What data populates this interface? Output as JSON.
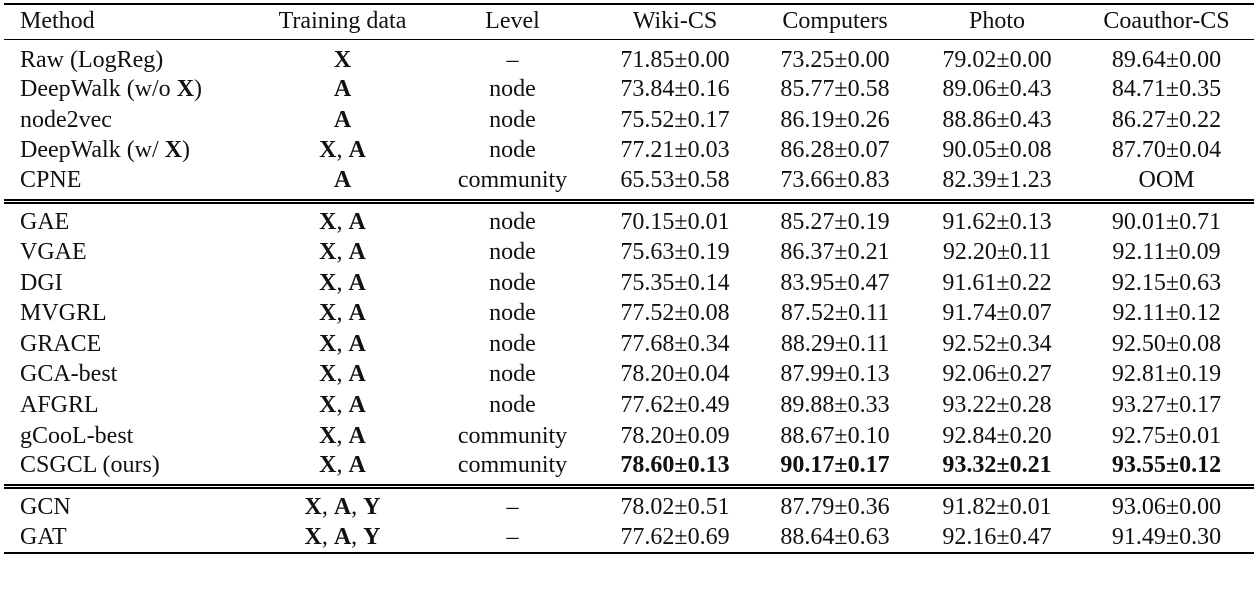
{
  "table": {
    "columns": [
      "Method",
      "Training data",
      "Level",
      "Wiki-CS",
      "Computers",
      "Photo",
      "Coauthor-CS"
    ],
    "groups": [
      [
        {
          "method": "Raw (LogReg)",
          "training": [
            {
              "text": "X",
              "bold": true
            }
          ],
          "level": "–",
          "results": [
            "71.85±0.00",
            "73.25±0.00",
            "79.02±0.00",
            "89.64±0.00"
          ]
        },
        {
          "method": [
            {
              "text": "DeepWalk (w/o "
            },
            {
              "text": "X",
              "bold": true
            },
            {
              "text": ")"
            }
          ],
          "training": [
            {
              "text": "A",
              "bold": true
            }
          ],
          "level": "node",
          "results": [
            "73.84±0.16",
            "85.77±0.58",
            "89.06±0.43",
            "84.71±0.35"
          ]
        },
        {
          "method": "node2vec",
          "training": [
            {
              "text": "A",
              "bold": true
            }
          ],
          "level": "node",
          "results": [
            "75.52±0.17",
            "86.19±0.26",
            "88.86±0.43",
            "86.27±0.22"
          ]
        },
        {
          "method": [
            {
              "text": "DeepWalk (w/ "
            },
            {
              "text": "X",
              "bold": true
            },
            {
              "text": ")"
            }
          ],
          "training": [
            {
              "text": "X",
              "bold": true
            },
            {
              "text": ", "
            },
            {
              "text": "A",
              "bold": true
            }
          ],
          "level": "node",
          "results": [
            "77.21±0.03",
            "86.28±0.07",
            "90.05±0.08",
            "87.70±0.04"
          ]
        },
        {
          "method": "CPNE",
          "training": [
            {
              "text": "A",
              "bold": true
            }
          ],
          "level": "community",
          "results": [
            "65.53±0.58",
            "73.66±0.83",
            "82.39±1.23",
            "OOM"
          ]
        }
      ],
      [
        {
          "method": "GAE",
          "training": [
            {
              "text": "X",
              "bold": true
            },
            {
              "text": ", "
            },
            {
              "text": "A",
              "bold": true
            }
          ],
          "level": "node",
          "results": [
            "70.15±0.01",
            "85.27±0.19",
            "91.62±0.13",
            "90.01±0.71"
          ]
        },
        {
          "method": "VGAE",
          "training": [
            {
              "text": "X",
              "bold": true
            },
            {
              "text": ", "
            },
            {
              "text": "A",
              "bold": true
            }
          ],
          "level": "node",
          "results": [
            "75.63±0.19",
            "86.37±0.21",
            "92.20±0.11",
            "92.11±0.09"
          ]
        },
        {
          "method": "DGI",
          "training": [
            {
              "text": "X",
              "bold": true
            },
            {
              "text": ", "
            },
            {
              "text": "A",
              "bold": true
            }
          ],
          "level": "node",
          "results": [
            "75.35±0.14",
            "83.95±0.47",
            "91.61±0.22",
            "92.15±0.63"
          ]
        },
        {
          "method": "MVGRL",
          "training": [
            {
              "text": "X",
              "bold": true
            },
            {
              "text": ", "
            },
            {
              "text": "A",
              "bold": true
            }
          ],
          "level": "node",
          "results": [
            "77.52±0.08",
            "87.52±0.11",
            "91.74±0.07",
            "92.11±0.12"
          ]
        },
        {
          "method": "GRACE",
          "training": [
            {
              "text": "X",
              "bold": true
            },
            {
              "text": ", "
            },
            {
              "text": "A",
              "bold": true
            }
          ],
          "level": "node",
          "results": [
            "77.68±0.34",
            "88.29±0.11",
            "92.52±0.34",
            "92.50±0.08"
          ]
        },
        {
          "method": "GCA-best",
          "training": [
            {
              "text": "X",
              "bold": true
            },
            {
              "text": ", "
            },
            {
              "text": "A",
              "bold": true
            }
          ],
          "level": "node",
          "results": [
            "78.20±0.04",
            "87.99±0.13",
            "92.06±0.27",
            "92.81±0.19"
          ]
        },
        {
          "method": "AFGRL",
          "training": [
            {
              "text": "X",
              "bold": true
            },
            {
              "text": ", "
            },
            {
              "text": "A",
              "bold": true
            }
          ],
          "level": "node",
          "results": [
            "77.62±0.49",
            "89.88±0.33",
            "93.22±0.28",
            "93.27±0.17"
          ]
        },
        {
          "method": "gCooL-best",
          "training": [
            {
              "text": "X",
              "bold": true
            },
            {
              "text": ", "
            },
            {
              "text": "A",
              "bold": true
            }
          ],
          "level": "community",
          "results": [
            "78.20±0.09",
            "88.67±0.10",
            "92.84±0.20",
            "92.75±0.01"
          ]
        },
        {
          "method": "CSGCL (ours)",
          "training": [
            {
              "text": "X",
              "bold": true
            },
            {
              "text": ", "
            },
            {
              "text": "A",
              "bold": true
            }
          ],
          "level": "community",
          "results": [
            "78.60±0.13",
            "90.17±0.17",
            "93.32±0.21",
            "93.55±0.12"
          ],
          "bold_results": true
        }
      ],
      [
        {
          "method": "GCN",
          "training": [
            {
              "text": "X",
              "bold": true
            },
            {
              "text": ", "
            },
            {
              "text": "A",
              "bold": true
            },
            {
              "text": ", "
            },
            {
              "text": "Y",
              "bold": true
            }
          ],
          "level": "–",
          "results": [
            "78.02±0.51",
            "87.79±0.36",
            "91.82±0.01",
            "93.06±0.00"
          ]
        },
        {
          "method": "GAT",
          "training": [
            {
              "text": "X",
              "bold": true
            },
            {
              "text": ", "
            },
            {
              "text": "A",
              "bold": true
            },
            {
              "text": ", "
            },
            {
              "text": "Y",
              "bold": true
            }
          ],
          "level": "–",
          "results": [
            "77.62±0.69",
            "88.64±0.63",
            "92.16±0.47",
            "91.49±0.30"
          ]
        }
      ]
    ]
  }
}
